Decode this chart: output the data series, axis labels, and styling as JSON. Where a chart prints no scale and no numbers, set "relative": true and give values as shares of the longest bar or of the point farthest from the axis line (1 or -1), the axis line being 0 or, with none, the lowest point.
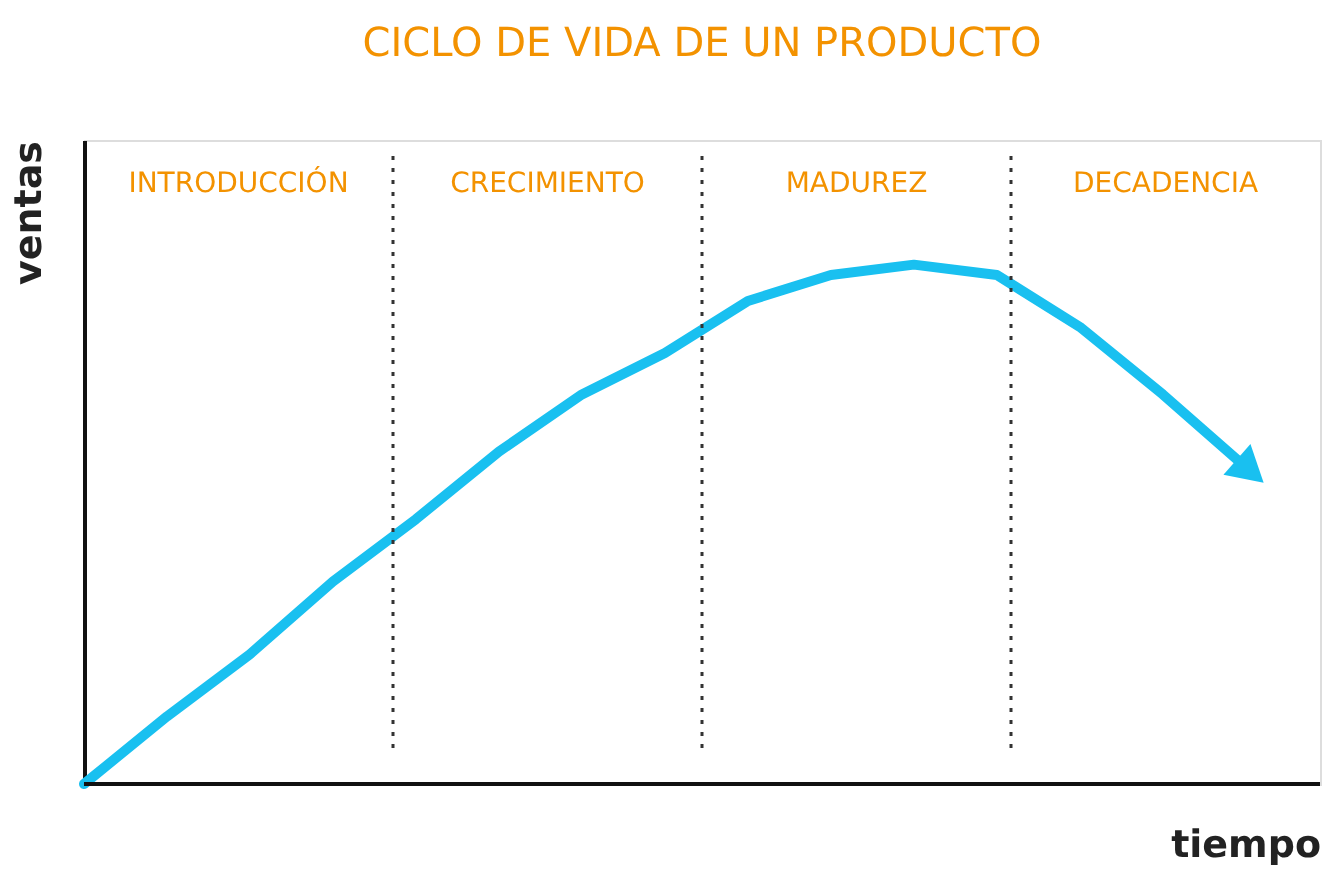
{
  "chart_data": {
    "type": "line",
    "title": "CICLO DE VIDA DE UN PRODUCTO",
    "xlabel": "tiempo",
    "ylabel": "ventas",
    "relative": true,
    "marker": "none",
    "line_style": "solid",
    "categories": [
      null,
      null,
      null,
      null,
      null,
      null,
      null,
      null,
      null,
      null,
      null,
      null,
      null,
      null,
      null
    ],
    "series": [
      {
        "color": "#19c0f0",
        "values": [
          0,
          0.13,
          0.25,
          0.39,
          0.51,
          0.64,
          0.75,
          0.83,
          0.93,
          0.98,
          1,
          0.98,
          0.88,
          0.75,
          0.61
        ]
      }
    ],
    "annotations": [
      "INTRODUCCIÓN",
      "CRECIMIENTO",
      "MADUREZ",
      "DECADENCIA"
    ]
  }
}
